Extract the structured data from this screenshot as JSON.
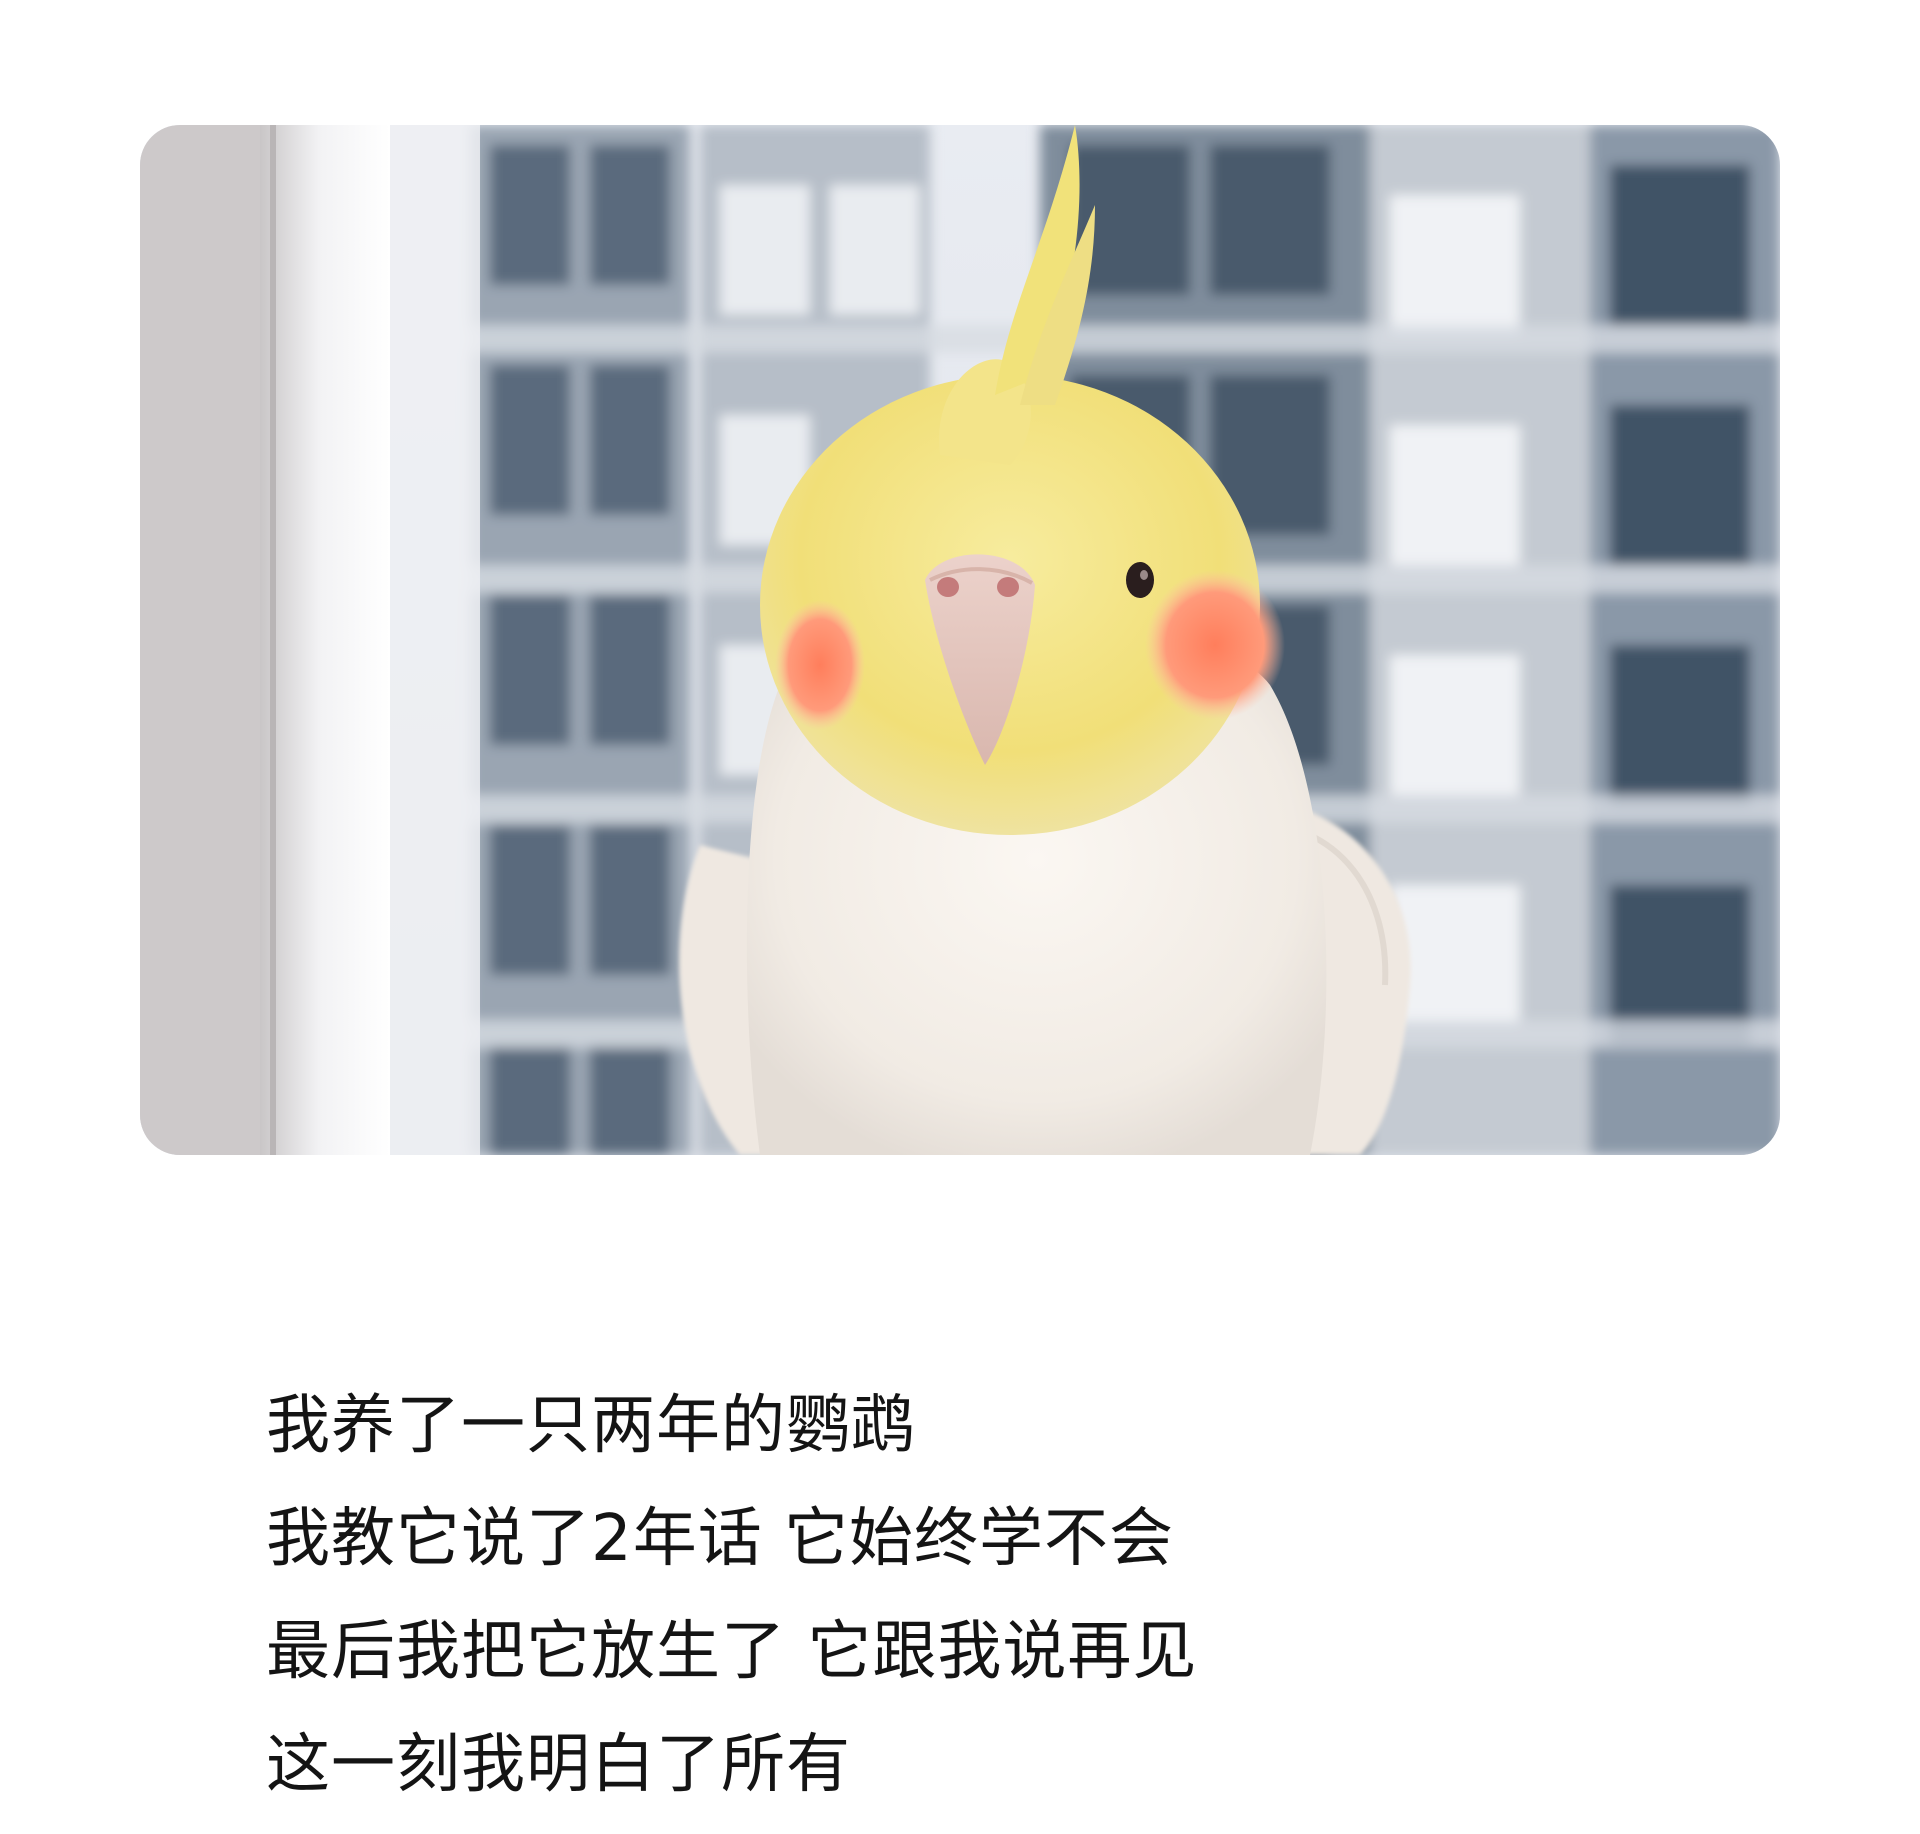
{
  "caption": {
    "lines": [
      "我养了一只两年的鹦鹉",
      "我教它说了2年话 它始终学不会",
      "最后我把它放生了 它跟我说再见",
      "这一刻我明白了所有"
    ]
  },
  "photo": {
    "subject": "cockatiel-photo",
    "colors": {
      "background": "#e8eaee",
      "building": "#8e9aa8",
      "window_dark": "#4c5e70",
      "bird_body": "#f6f0ea",
      "bird_head": "#f3e27a",
      "cheek": "#ff8a6a",
      "beak": "#e6c8c0"
    }
  }
}
